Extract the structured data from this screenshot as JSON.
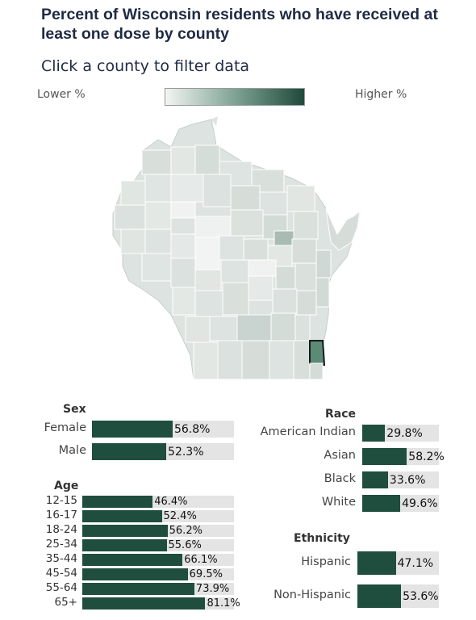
{
  "header": {
    "title": "Percent of Wisconsin residents who have received at least one dose by county",
    "subtitle": "Click a county to filter data"
  },
  "legend": {
    "lower_label": "Lower %",
    "higher_label": "Higher %",
    "colors": [
      "#f2f5f3",
      "#7fa394",
      "#1e4a3b"
    ]
  },
  "map": {
    "state": "Wisconsin",
    "selected_county_color": "#5b8a77",
    "county_fill": "#dde3e0",
    "county_border": "#ffffff"
  },
  "sex": {
    "heading": "Sex",
    "items": [
      {
        "label": "Female",
        "value": 56.8,
        "value_label": "56.8%"
      },
      {
        "label": "Male",
        "value": 52.3,
        "value_label": "52.3%"
      }
    ]
  },
  "age": {
    "heading": "Age",
    "items": [
      {
        "label": "12-15",
        "value": 46.4,
        "value_label": "46.4%"
      },
      {
        "label": "16-17",
        "value": 52.4,
        "value_label": "52.4%"
      },
      {
        "label": "18-24",
        "value": 56.2,
        "value_label": "56.2%"
      },
      {
        "label": "25-34",
        "value": 55.6,
        "value_label": "55.6%"
      },
      {
        "label": "35-44",
        "value": 66.1,
        "value_label": "66.1%"
      },
      {
        "label": "45-54",
        "value": 69.5,
        "value_label": "69.5%"
      },
      {
        "label": "55-64",
        "value": 73.9,
        "value_label": "73.9%"
      },
      {
        "label": "65+",
        "value": 81.1,
        "value_label": "81.1%"
      }
    ]
  },
  "race": {
    "heading": "Race",
    "items": [
      {
        "label": "American Indian",
        "value": 29.8,
        "value_label": "29.8%"
      },
      {
        "label": "Asian",
        "value": 58.2,
        "value_label": "58.2%"
      },
      {
        "label": "Black",
        "value": 33.6,
        "value_label": "33.6%"
      },
      {
        "label": "White",
        "value": 49.6,
        "value_label": "49.6%"
      }
    ]
  },
  "ethnicity": {
    "heading": "Ethnicity",
    "items": [
      {
        "label": "Hispanic",
        "value": 47.1,
        "value_label": "47.1%"
      },
      {
        "label": "Non-Hispanic",
        "value": 53.6,
        "value_label": "53.6%"
      }
    ]
  },
  "colors": {
    "bar_fill": "#1f4d3e",
    "bar_bg": "#e4e4e4"
  }
}
